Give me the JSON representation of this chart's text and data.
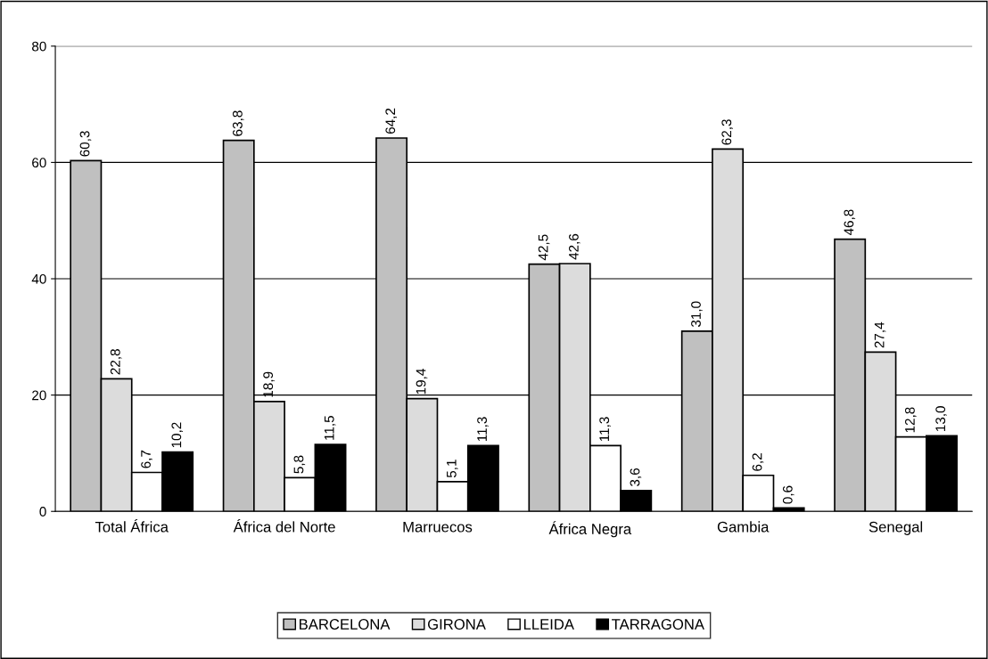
{
  "chart_data": {
    "type": "bar",
    "categories": [
      "Total África",
      "África del Norte",
      "Marruecos",
      "África Negra",
      "Gambia",
      "Senegal"
    ],
    "series": [
      {
        "name": "BARCELONA",
        "color": "#c0c0c0",
        "values": [
          60.3,
          63.8,
          64.2,
          42.5,
          31.0,
          46.8
        ],
        "value_labels": [
          "60,3",
          "63,8",
          "64,2",
          "42,5",
          "31,0",
          "46,8"
        ]
      },
      {
        "name": "GIRONA",
        "color": "#dcdcdc",
        "values": [
          22.8,
          18.9,
          19.4,
          42.6,
          62.3,
          27.4
        ],
        "value_labels": [
          "22,8",
          "18,9",
          "19,4",
          "42,6",
          "62,3",
          "27,4"
        ]
      },
      {
        "name": "LLEIDA",
        "color": "#ffffff",
        "values": [
          6.7,
          5.8,
          5.1,
          11.3,
          6.2,
          12.8
        ],
        "value_labels": [
          "6,7",
          "5,8",
          "5,1",
          "11,3",
          "6,2",
          "12,8"
        ]
      },
      {
        "name": "TARRAGONA",
        "color": "#000000",
        "values": [
          10.2,
          11.5,
          11.3,
          3.6,
          0.6,
          13.0
        ],
        "value_labels": [
          "10,2",
          "11,5",
          "11,3",
          "3,6",
          "0,6",
          "13,0"
        ]
      }
    ],
    "ylim": [
      0,
      80
    ],
    "yticks": [
      0,
      20,
      40,
      60,
      80
    ],
    "grid": "y",
    "legend": "bottom"
  }
}
